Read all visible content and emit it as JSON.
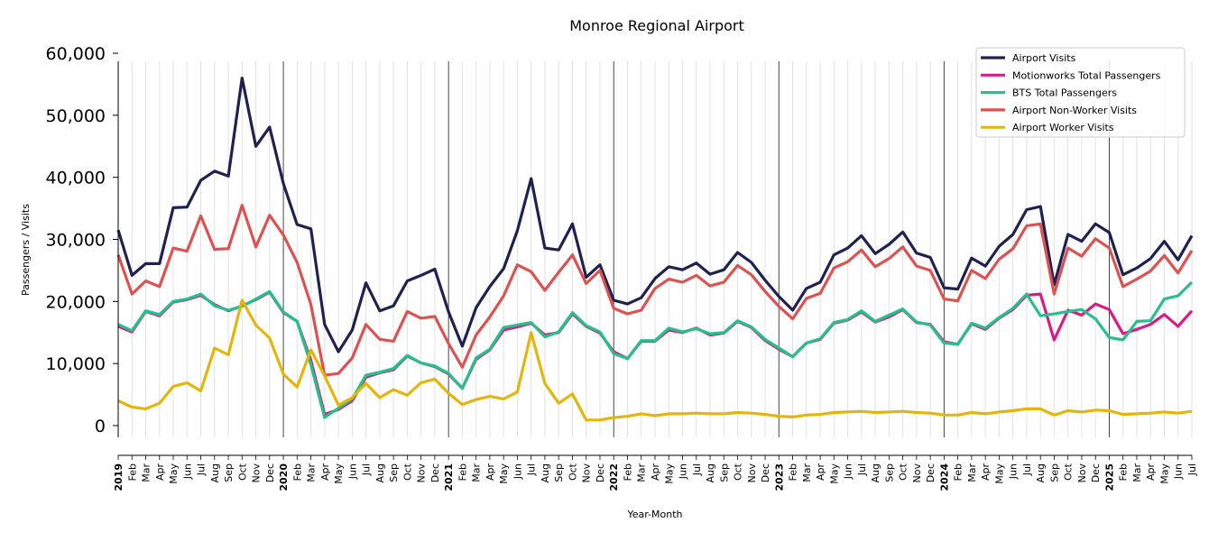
{
  "chart_data": {
    "type": "line",
    "title": "Monroe Regional Airport",
    "xlabel": "Year-Month",
    "ylabel": "Passengers / Visits",
    "ylim": [
      -2000,
      60000
    ],
    "yticks": [
      0,
      10000,
      20000,
      30000,
      40000,
      50000,
      60000
    ],
    "ytick_labels": [
      "0",
      "10,000",
      "20,000",
      "30,000",
      "40,000",
      "50,000",
      "60,000"
    ],
    "start": "2019-01",
    "month_labels": [
      "Jan",
      "Feb",
      "Mar",
      "Apr",
      "May",
      "Jun",
      "Jul",
      "Aug",
      "Sep",
      "Oct",
      "Nov",
      "Dec"
    ],
    "years": [
      "2019",
      "2020",
      "2021",
      "2022",
      "2023",
      "2024",
      "2025"
    ],
    "legend_position": "top-right",
    "series": [
      {
        "name": "Airport Visits",
        "color": "#1f2150",
        "values": [
          31500,
          24200,
          26100,
          26100,
          35100,
          35200,
          39500,
          41000,
          40200,
          56000,
          45000,
          48100,
          39000,
          32400,
          31700,
          16300,
          11900,
          15400,
          23000,
          18500,
          19300,
          23300,
          24200,
          25200,
          18300,
          12800,
          19000,
          22400,
          25300,
          31400,
          39800,
          28600,
          28300,
          32500,
          23900,
          25900,
          20200,
          19600,
          20600,
          23700,
          25600,
          25100,
          26200,
          24400,
          25100,
          27900,
          26300,
          23400,
          20800,
          18600,
          22100,
          23100,
          27500,
          28600,
          30600,
          27700,
          29200,
          31200,
          27800,
          27100,
          22200,
          22000,
          27000,
          25700,
          28900,
          30800,
          34800,
          35300,
          22700,
          30800,
          29700,
          32500,
          31100,
          24300,
          25400,
          26900,
          29700,
          26700,
          30600
        ]
      },
      {
        "name": "Motionworks Total Passengers",
        "color": "#d81b86",
        "values": [
          16000,
          15100,
          18400,
          17700,
          19900,
          20300,
          21000,
          19500,
          18500,
          19300,
          20300,
          21500,
          18200,
          16800,
          10500,
          1800,
          2600,
          4000,
          7800,
          8500,
          9000,
          11200,
          10100,
          9500,
          8300,
          6000,
          10700,
          12200,
          15400,
          15900,
          16500,
          14600,
          15000,
          18000,
          16000,
          14900,
          11900,
          10800,
          13600,
          13600,
          15400,
          15000,
          15700,
          14600,
          14900,
          16800,
          15800,
          13700,
          12300,
          11100,
          13300,
          13900,
          16500,
          17000,
          18300,
          16700,
          17500,
          18700,
          16600,
          16300,
          13500,
          13100,
          16400,
          15500,
          17300,
          18700,
          21000,
          21200,
          13800,
          18600,
          17800,
          19600,
          18700,
          14800,
          15500,
          16300,
          17900,
          16000,
          18500
        ]
      },
      {
        "name": "BTS Total Passengers",
        "color": "#26c08d",
        "values": [
          16300,
          15300,
          18500,
          17900,
          20000,
          20400,
          21200,
          19300,
          18600,
          19200,
          20400,
          21600,
          18300,
          16800,
          9800,
          1300,
          2800,
          4300,
          8100,
          8600,
          9200,
          11300,
          10100,
          9600,
          8400,
          6000,
          10900,
          12300,
          15800,
          16200,
          16600,
          14300,
          15100,
          18200,
          16100,
          15100,
          11600,
          10800,
          13700,
          13700,
          15700,
          15100,
          15600,
          14800,
          15000,
          16900,
          15900,
          13900,
          12500,
          11100,
          13300,
          14000,
          16600,
          17100,
          18500,
          16800,
          17800,
          18800,
          16700,
          16200,
          13300,
          13100,
          16500,
          15700,
          17400,
          18900,
          21200,
          17700,
          18000,
          18400,
          18700,
          17200,
          14200,
          13800,
          16800,
          16900,
          20400,
          20900,
          23100
        ]
      },
      {
        "name": "Airport Non-Worker Visits",
        "color": "#dd5250",
        "values": [
          27500,
          21200,
          23300,
          22400,
          28600,
          28100,
          33800,
          28400,
          28500,
          35500,
          28800,
          33900,
          30700,
          26300,
          19500,
          8100,
          8400,
          10900,
          16300,
          13900,
          13600,
          18400,
          17300,
          17600,
          13200,
          9400,
          14600,
          17500,
          20900,
          25900,
          24800,
          21800,
          24700,
          27500,
          22900,
          25000,
          18900,
          18000,
          18600,
          22100,
          23600,
          23100,
          24200,
          22500,
          23100,
          25800,
          24300,
          21600,
          19200,
          17200,
          20500,
          21300,
          25400,
          26400,
          28300,
          25600,
          26900,
          28800,
          25700,
          25000,
          20400,
          20100,
          25000,
          23700,
          26800,
          28500,
          32200,
          32500,
          21200,
          28600,
          27300,
          30100,
          28600,
          22400,
          23600,
          24900,
          27400,
          24600,
          28200
        ]
      },
      {
        "name": "Airport Worker Visits",
        "color": "#e4b60b",
        "values": [
          4000,
          3000,
          2700,
          3600,
          6300,
          6900,
          5600,
          12500,
          11400,
          20200,
          16200,
          14100,
          8300,
          6200,
          12200,
          8000,
          3300,
          4500,
          6800,
          4500,
          5800,
          4900,
          6900,
          7500,
          5200,
          3400,
          4200,
          4700,
          4300,
          5400,
          15000,
          6800,
          3600,
          5100,
          900,
          900,
          1300,
          1500,
          1900,
          1600,
          1900,
          1900,
          2000,
          1900,
          1900,
          2100,
          2000,
          1800,
          1500,
          1400,
          1700,
          1800,
          2100,
          2200,
          2300,
          2100,
          2200,
          2300,
          2100,
          2000,
          1700,
          1700,
          2100,
          1900,
          2200,
          2400,
          2700,
          2700,
          1700,
          2400,
          2200,
          2500,
          2400,
          1800,
          1900,
          2000,
          2200,
          2000,
          2300
        ]
      }
    ]
  }
}
